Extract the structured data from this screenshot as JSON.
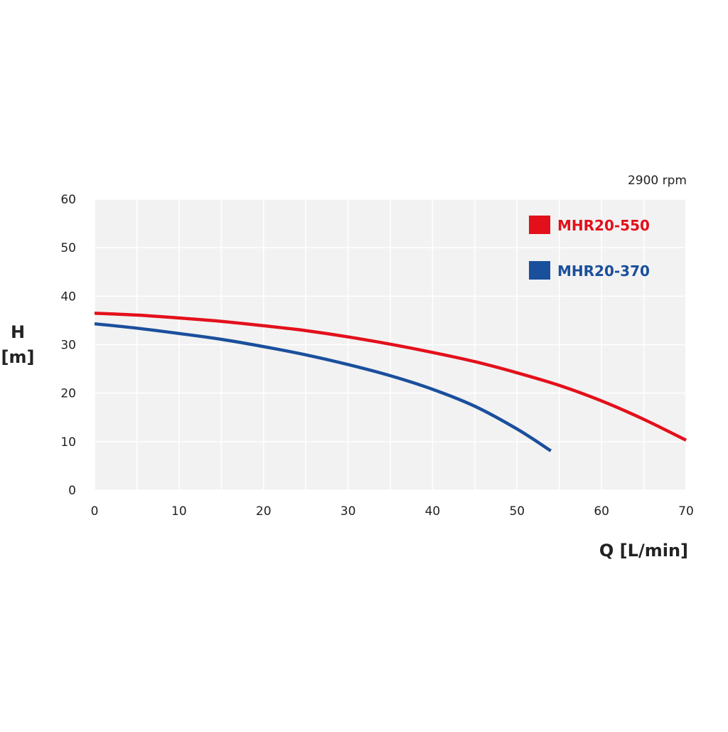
{
  "chart_data": {
    "type": "line",
    "title": "",
    "annotation": "2900 rpm",
    "xlabel": "Q [L/min]",
    "ylabel_line1": "H",
    "ylabel_line2": "[m]",
    "xlim": [
      0,
      70
    ],
    "ylim": [
      0,
      60
    ],
    "x_ticks": [
      0,
      10,
      20,
      30,
      40,
      50,
      60,
      70
    ],
    "y_ticks": [
      0,
      10,
      20,
      30,
      40,
      50,
      60
    ],
    "grid": true,
    "legend_position": "top-right",
    "series": [
      {
        "name": "MHR20-550",
        "color": "#e3101b",
        "x": [
          0,
          5,
          10,
          15,
          20,
          25,
          30,
          35,
          40,
          45,
          50,
          55,
          60,
          65,
          70
        ],
        "y": [
          36.5,
          36.1,
          35.5,
          34.8,
          33.9,
          32.9,
          31.6,
          30.1,
          28.4,
          26.5,
          24.2,
          21.6,
          18.4,
          14.6,
          10.3
        ]
      },
      {
        "name": "MHR20-370",
        "color": "#1a4f9c",
        "x": [
          0,
          5,
          10,
          15,
          20,
          25,
          30,
          35,
          40,
          45,
          50,
          54
        ],
        "y": [
          34.3,
          33.4,
          32.3,
          31.1,
          29.6,
          27.9,
          25.9,
          23.6,
          20.8,
          17.3,
          12.6,
          8.1
        ]
      }
    ]
  }
}
